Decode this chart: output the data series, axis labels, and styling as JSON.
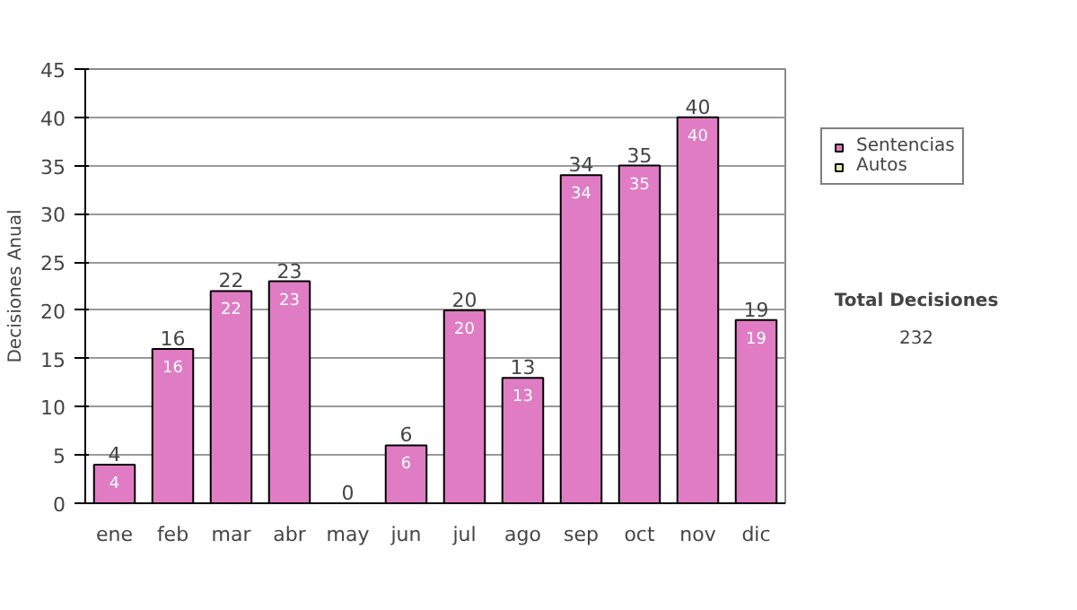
{
  "chart_data": {
    "type": "bar",
    "stacked": true,
    "ylabel": "Decisiones Anual",
    "categories": [
      "ene",
      "feb",
      "mar",
      "abr",
      "may",
      "jun",
      "jul",
      "ago",
      "sep",
      "oct",
      "nov",
      "dic"
    ],
    "series": [
      {
        "name": "Sentencias",
        "color": "#e07cc4",
        "values": [
          4,
          16,
          22,
          23,
          0,
          6,
          20,
          13,
          34,
          35,
          40,
          19
        ],
        "value_labels": [
          "4",
          "16",
          "22",
          "23",
          null,
          "6",
          "20",
          "13",
          "34",
          "35",
          "40",
          "19"
        ]
      },
      {
        "name": "Autos",
        "color": "#e4f0a0",
        "values": [
          0,
          0,
          0,
          0,
          0,
          0,
          0,
          0,
          0,
          0,
          0,
          0
        ]
      }
    ],
    "totals": [
      "4",
      "16",
      "22",
      "23",
      "0",
      "6",
      "20",
      "13",
      "34",
      "35",
      "40",
      "19"
    ],
    "ylim": [
      0,
      45
    ],
    "yticks": [
      0,
      5,
      10,
      15,
      20,
      25,
      30,
      35,
      40,
      45
    ],
    "grid": "y",
    "legend": "right",
    "annotations": [
      "Total Decisiones",
      "232"
    ]
  }
}
